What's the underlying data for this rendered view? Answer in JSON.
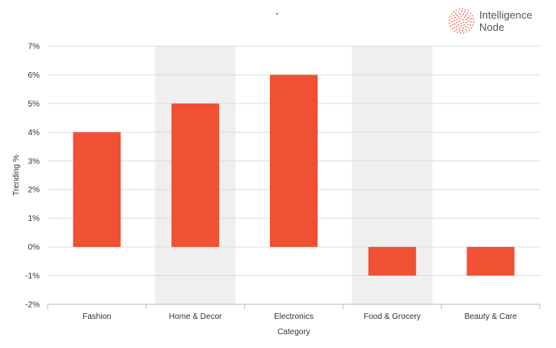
{
  "brand": {
    "line1": "Intelligence",
    "line2": "Node"
  },
  "colors": {
    "bar": "#F05033",
    "band": "#EFEFEF",
    "grid": "#DDDDDD",
    "axis": "#BBBBBB"
  },
  "chart_data": {
    "type": "bar",
    "categories": [
      "Fashion",
      "Home & Decor",
      "Electronics",
      "Food & Grocery",
      "Beauty & Care"
    ],
    "values": [
      4,
      5,
      6,
      -1,
      -1
    ],
    "unit": "%",
    "xlabel": "Category",
    "ylabel": "Trending %",
    "ylim": [
      -2,
      7
    ],
    "yticks": [
      "-2%",
      "-1%",
      "0%",
      "1%",
      "2%",
      "3%",
      "4%",
      "5%",
      "6%",
      "7%"
    ],
    "alternating_bands": true,
    "grid": true
  }
}
